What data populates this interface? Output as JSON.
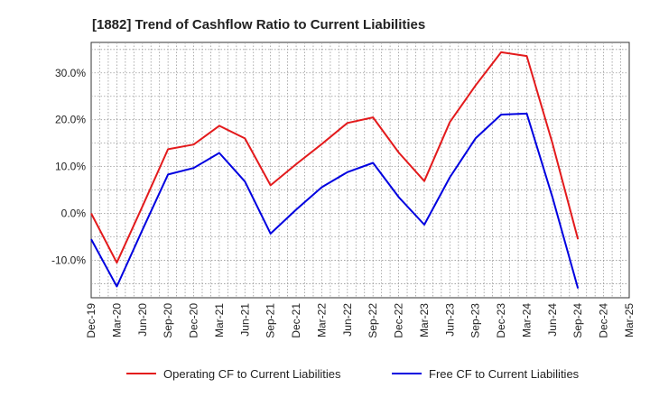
{
  "chart_data": {
    "type": "line",
    "title": "[1882]  Trend of Cashflow Ratio to Current Liabilities",
    "xlabel": "",
    "ylabel": "",
    "x_ticks": [
      "Dec-19",
      "Mar-20",
      "Jun-20",
      "Sep-20",
      "Dec-20",
      "Mar-21",
      "Jun-21",
      "Sep-21",
      "Dec-21",
      "Mar-22",
      "Jun-22",
      "Sep-22",
      "Dec-22",
      "Mar-23",
      "Jun-23",
      "Sep-23",
      "Dec-23",
      "Mar-24",
      "Jun-24",
      "Sep-24",
      "Dec-24",
      "Mar-25"
    ],
    "y_ticks": [
      "30.0%",
      "20.0%",
      "10.0%",
      "0.0%",
      "-10.0%"
    ],
    "y_tick_values": [
      30,
      20,
      10,
      0,
      -10
    ],
    "ylim": [
      -18,
      36.5
    ],
    "grid": true,
    "legend_position": "bottom",
    "series": [
      {
        "name": "Operating CF to Current Liabilities",
        "color": "#e31a1c",
        "values": [
          0.0,
          -10.5,
          1.5,
          13.7,
          14.7,
          18.7,
          16.0,
          6.0,
          10.5,
          14.8,
          19.3,
          20.5,
          13.0,
          6.9,
          19.5,
          27.3,
          34.4,
          33.6,
          15.0,
          -5.5,
          null,
          null
        ]
      },
      {
        "name": "Free CF to Current Liabilities",
        "color": "#0000e0",
        "values": [
          -5.5,
          -15.6,
          -3.5,
          8.3,
          9.7,
          12.9,
          6.8,
          -4.3,
          0.8,
          5.6,
          8.8,
          10.8,
          3.5,
          -2.4,
          7.7,
          16.0,
          21.1,
          21.3,
          3.5,
          -16.0,
          null,
          null
        ]
      }
    ]
  }
}
